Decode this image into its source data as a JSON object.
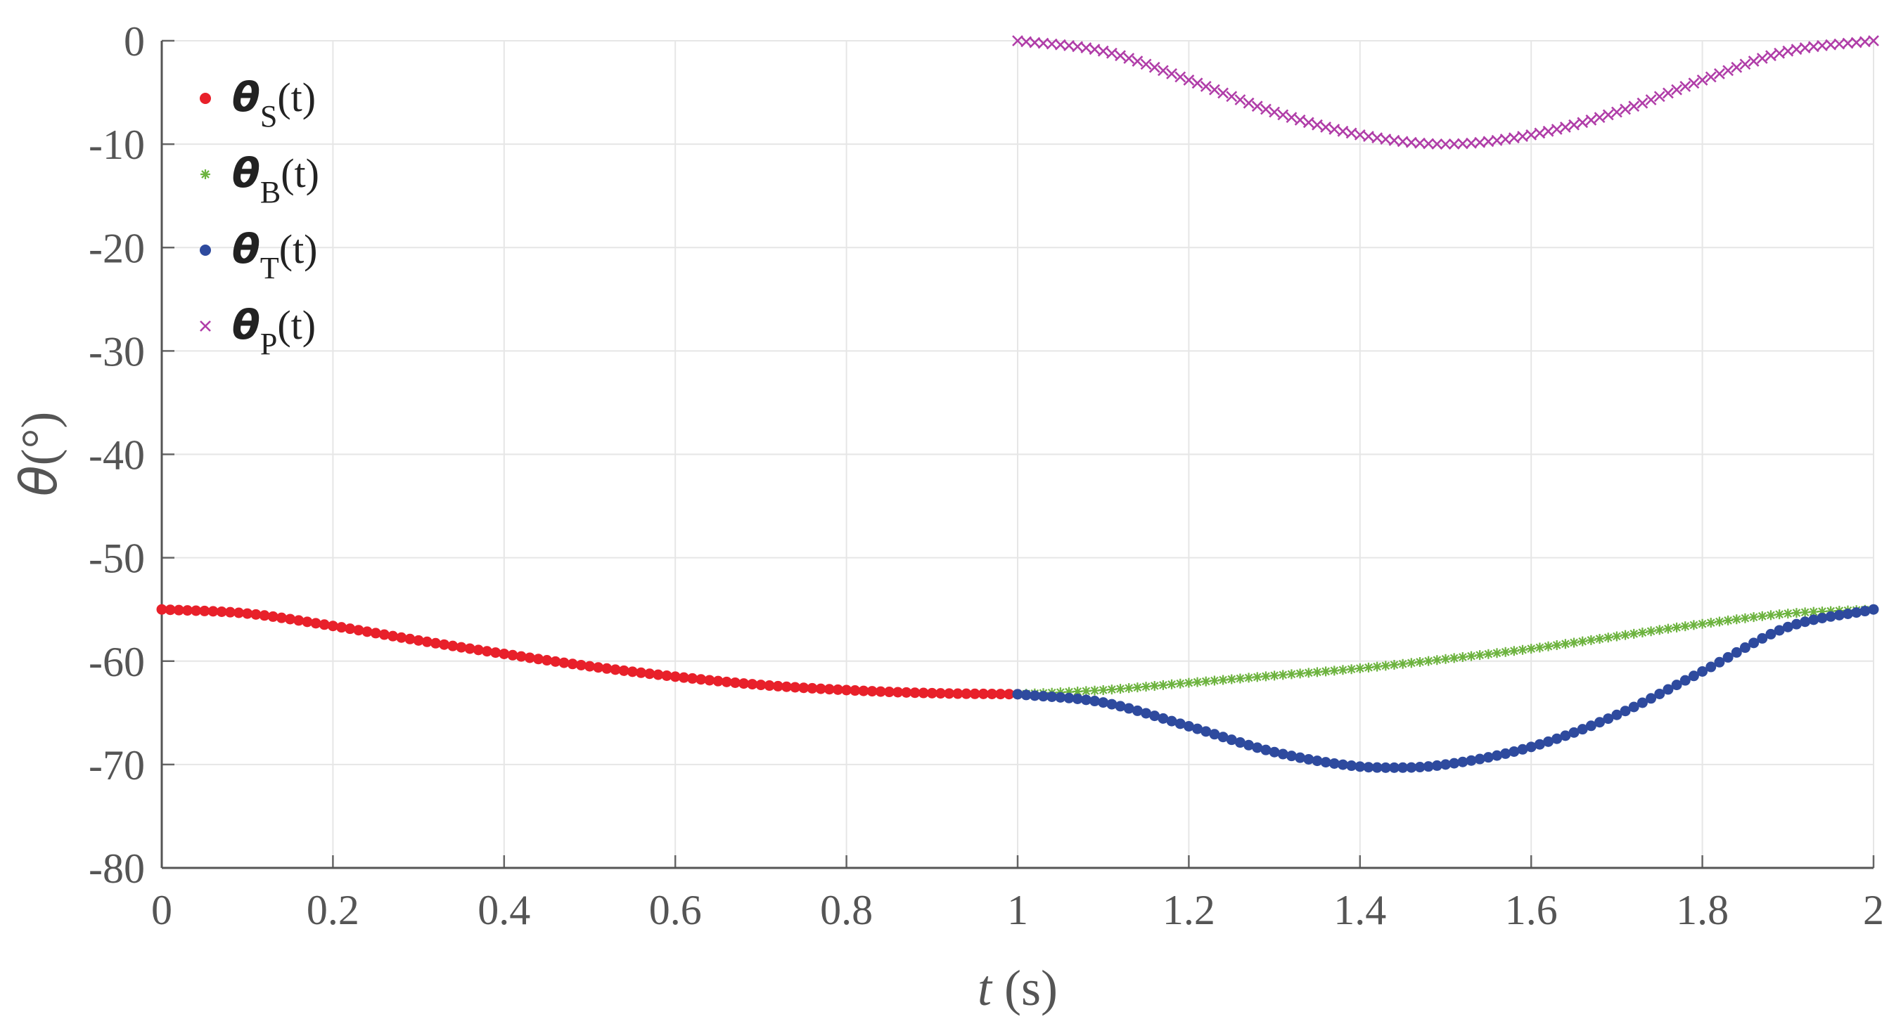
{
  "chart_data": {
    "type": "scatter",
    "xlabel": "t (s)",
    "xlabel_var": "t",
    "xlabel_unit": " (s)",
    "ylabel": "θ(°)",
    "ylabel_var": "θ",
    "ylabel_unit": "(°)",
    "xlim": [
      0,
      2
    ],
    "ylim": [
      -80,
      0
    ],
    "x_ticks": [
      "0",
      "0.2",
      "0.4",
      "0.6",
      "0.8",
      "1",
      "1.2",
      "1.4",
      "1.6",
      "1.8",
      "2"
    ],
    "x_tick_values": [
      0,
      0.2,
      0.4,
      0.6,
      0.8,
      1.0,
      1.2,
      1.4,
      1.6,
      1.8,
      2.0
    ],
    "y_ticks": [
      "0",
      "-10",
      "-20",
      "-30",
      "-40",
      "-50",
      "-60",
      "-70",
      "-80"
    ],
    "y_tick_values": [
      0,
      -10,
      -20,
      -30,
      -40,
      -50,
      -60,
      -70,
      -80
    ],
    "grid": true,
    "legend_position": "top-left",
    "series": [
      {
        "name": "θS(t)",
        "symbol": "θ",
        "subscript": "S",
        "suffix": "(t)",
        "color": "#e8202a",
        "marker": "dot",
        "x": [
          0.0,
          0.1,
          0.2,
          0.3,
          0.4,
          0.5,
          0.6,
          0.7,
          0.8,
          0.9,
          1.0
        ],
        "y": [
          -55.0,
          -55.4,
          -56.6,
          -58.0,
          -59.3,
          -60.5,
          -61.5,
          -62.3,
          -62.8,
          -63.1,
          -63.2
        ]
      },
      {
        "name": "θB(t)",
        "symbol": "θ",
        "subscript": "B",
        "suffix": "(t)",
        "color": "#6db33f",
        "marker": "asterisk",
        "x": [
          1.0,
          1.1,
          1.2,
          1.3,
          1.4,
          1.5,
          1.6,
          1.7,
          1.8,
          1.9,
          2.0
        ],
        "y": [
          -63.2,
          -62.8,
          -62.1,
          -61.4,
          -60.7,
          -59.8,
          -58.8,
          -57.6,
          -56.4,
          -55.4,
          -55.0
        ]
      },
      {
        "name": "θT(t)",
        "symbol": "θ",
        "subscript": "T",
        "suffix": "(t)",
        "color": "#2e4a9e",
        "marker": "dot",
        "x": [
          1.0,
          1.1,
          1.2,
          1.3,
          1.4,
          1.45,
          1.5,
          1.6,
          1.7,
          1.8,
          1.9,
          2.0
        ],
        "y": [
          -63.2,
          -64.0,
          -66.3,
          -68.8,
          -70.2,
          -70.3,
          -70.0,
          -68.3,
          -65.2,
          -61.0,
          -56.7,
          -55.0
        ]
      },
      {
        "name": "θP(t)",
        "symbol": "θ",
        "subscript": "P",
        "suffix": "(t)",
        "color": "#b03da8",
        "marker": "cross",
        "x": [
          1.0,
          1.1,
          1.2,
          1.3,
          1.4,
          1.5,
          1.6,
          1.7,
          1.8,
          1.9,
          2.0
        ],
        "y": [
          0.0,
          -1.0,
          -3.8,
          -6.9,
          -9.1,
          -10.0,
          -9.1,
          -6.9,
          -3.8,
          -1.0,
          0.0
        ]
      }
    ]
  }
}
